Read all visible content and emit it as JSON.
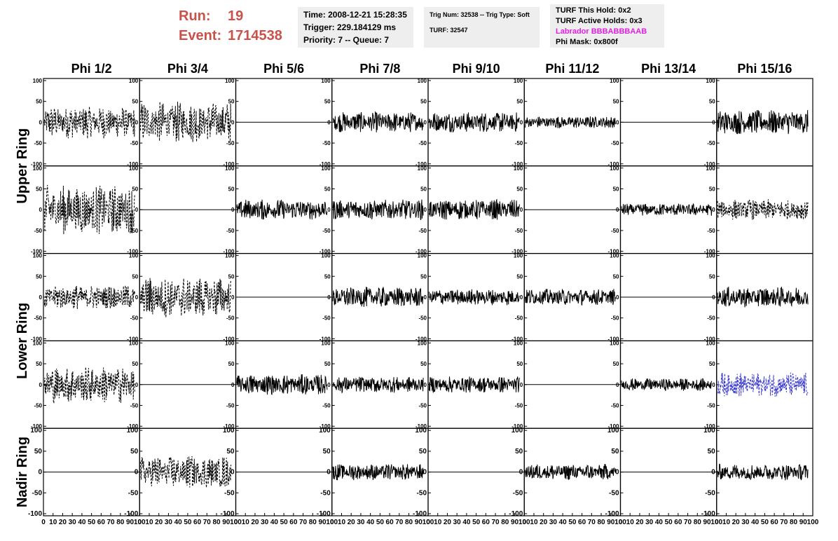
{
  "header": {
    "run_label": "Run:",
    "run": "19",
    "event_label": "Event:",
    "event": "1714538"
  },
  "info_boxes": [
    [
      "Time: 2008-12-21 15:28:35",
      "Trigger: 229.184129 ms",
      "Priority: 7 -- Queue: 7"
    ],
    [
      "Trig Num: 32538 -- Trig Type: Soft",
      "TURF: 32547"
    ],
    [
      "TURF This Hold: 0x2",
      "TURF Active Holds: 0x3",
      "Labrador BBBABBBAAB",
      "Phi Mask: 0x800f"
    ]
  ],
  "columns": [
    "Phi 1/2",
    "Phi 3/4",
    "Phi 5/6",
    "Phi 7/8",
    "Phi 9/10",
    "Phi 11/12",
    "Phi 13/14",
    "Phi 15/16"
  ],
  "row_labels": [
    "Upper Ring",
    "Lower Ring",
    "Nadir Ring"
  ],
  "axes": {
    "xlim": [
      0,
      100
    ],
    "xticks": [
      0,
      10,
      20,
      30,
      40,
      50,
      60,
      70,
      80,
      90,
      100
    ],
    "ylim": [
      -105,
      105
    ],
    "yticks": [
      -100,
      -50,
      0,
      50,
      100
    ]
  },
  "panels": [
    [
      {
        "trace": "dashed",
        "color": "#000000",
        "amplitude": 40
      },
      {
        "trace": "dashed",
        "color": "#000000",
        "amplitude": 50
      },
      {
        "trace": "flat",
        "color": "#000000",
        "amplitude": 0
      },
      {
        "trace": "solid",
        "color": "#000000",
        "amplitude": 25
      },
      {
        "trace": "solid",
        "color": "#000000",
        "amplitude": 25
      },
      {
        "trace": "solid",
        "color": "#000000",
        "amplitude": 15
      },
      {
        "trace": "flat",
        "color": "#000000",
        "amplitude": 0
      },
      {
        "trace": "solid",
        "color": "#000000",
        "amplitude": 30
      }
    ],
    [
      {
        "trace": "dashed",
        "color": "#000000",
        "amplitude": 60
      },
      {
        "trace": "flat",
        "color": "#000000",
        "amplitude": 0
      },
      {
        "trace": "solid",
        "color": "#000000",
        "amplitude": 25
      },
      {
        "trace": "solid",
        "color": "#000000",
        "amplitude": 25
      },
      {
        "trace": "solid",
        "color": "#000000",
        "amplitude": 25
      },
      {
        "trace": "flat",
        "color": "#000000",
        "amplitude": 0
      },
      {
        "trace": "solid",
        "color": "#000000",
        "amplitude": 15
      },
      {
        "trace": "dashed",
        "color": "#000000",
        "amplitude": 25
      }
    ],
    [
      {
        "trace": "dashed",
        "color": "#000000",
        "amplitude": 30
      },
      {
        "trace": "dashed",
        "color": "#000000",
        "amplitude": 50
      },
      {
        "trace": "flat",
        "color": "#000000",
        "amplitude": 0
      },
      {
        "trace": "solid",
        "color": "#000000",
        "amplitude": 25
      },
      {
        "trace": "solid",
        "color": "#000000",
        "amplitude": 20
      },
      {
        "trace": "solid",
        "color": "#000000",
        "amplitude": 20
      },
      {
        "trace": "flat",
        "color": "#000000",
        "amplitude": 0
      },
      {
        "trace": "solid",
        "color": "#000000",
        "amplitude": 25
      }
    ],
    [
      {
        "trace": "dashed",
        "color": "#000000",
        "amplitude": 45
      },
      {
        "trace": "flat",
        "color": "#000000",
        "amplitude": 0
      },
      {
        "trace": "solid",
        "color": "#000000",
        "amplitude": 25
      },
      {
        "trace": "solid",
        "color": "#000000",
        "amplitude": 20
      },
      {
        "trace": "solid",
        "color": "#000000",
        "amplitude": 20
      },
      {
        "trace": "flat",
        "color": "#000000",
        "amplitude": 0
      },
      {
        "trace": "solid",
        "color": "#000000",
        "amplitude": 15
      },
      {
        "trace": "dashed",
        "color": "#3a3ad0",
        "amplitude": 30
      }
    ],
    [
      {
        "trace": "flat",
        "color": "#000000",
        "amplitude": 0
      },
      {
        "trace": "dashed",
        "color": "#000000",
        "amplitude": 40
      },
      {
        "trace": "flat",
        "color": "#000000",
        "amplitude": 0
      },
      {
        "trace": "solid",
        "color": "#000000",
        "amplitude": 20
      },
      {
        "trace": "flat",
        "color": "#000000",
        "amplitude": 0
      },
      {
        "trace": "solid",
        "color": "#000000",
        "amplitude": 20
      },
      {
        "trace": "flat",
        "color": "#000000",
        "amplitude": 0
      },
      {
        "trace": "solid",
        "color": "#000000",
        "amplitude": 20
      }
    ]
  ]
}
